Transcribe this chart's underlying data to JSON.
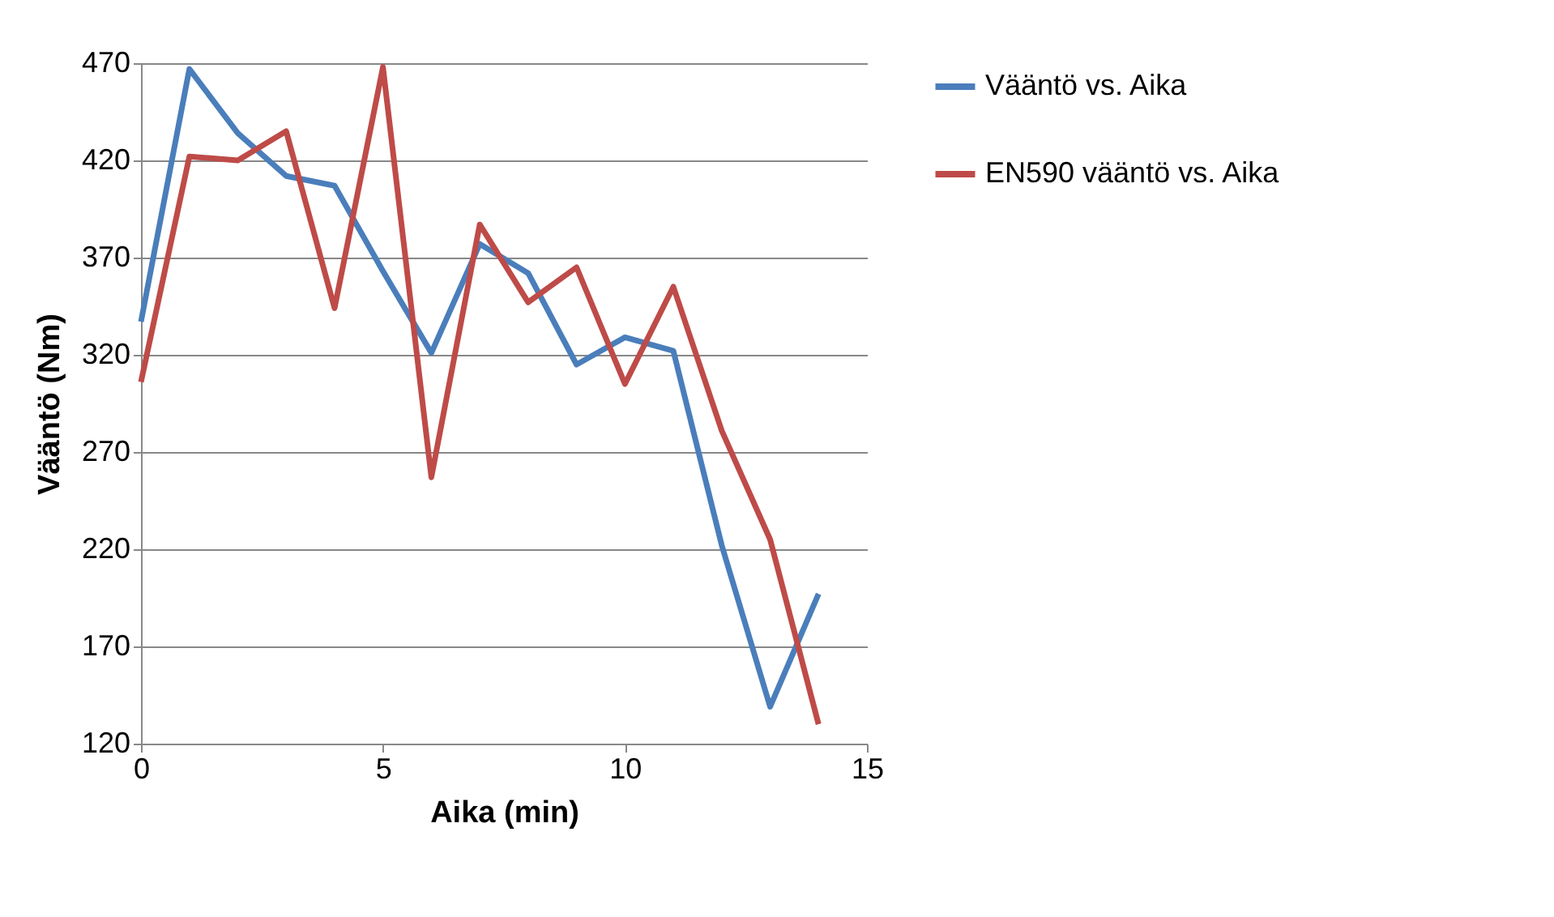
{
  "chart_data": {
    "type": "line",
    "xlabel": "Aika (min)",
    "ylabel": "Vääntö (Nm)",
    "x": [
      0,
      1,
      2,
      3,
      4,
      5,
      6,
      7,
      8,
      9,
      10,
      11,
      12,
      13,
      14
    ],
    "series": [
      {
        "name": "Vääntö vs. Aika",
        "color": "#4a7ebb",
        "values": [
          337,
          467,
          434,
          412,
          407,
          363,
          321,
          377,
          362,
          315,
          329,
          322,
          222,
          139,
          197
        ]
      },
      {
        "name": "EN590 vääntö vs. Aika",
        "color": "#be4b48",
        "values": [
          306,
          422,
          420,
          435,
          344,
          468,
          257,
          387,
          347,
          365,
          305,
          355,
          281,
          225,
          130
        ]
      }
    ],
    "xlim": [
      0,
      15
    ],
    "xticks": [
      0,
      5,
      10,
      15
    ],
    "ylim": [
      120,
      470
    ],
    "yticks": [
      120,
      170,
      220,
      270,
      320,
      370,
      420,
      470
    ],
    "grid": "y",
    "legend": "right",
    "marker": "none",
    "line_style": "solid"
  }
}
